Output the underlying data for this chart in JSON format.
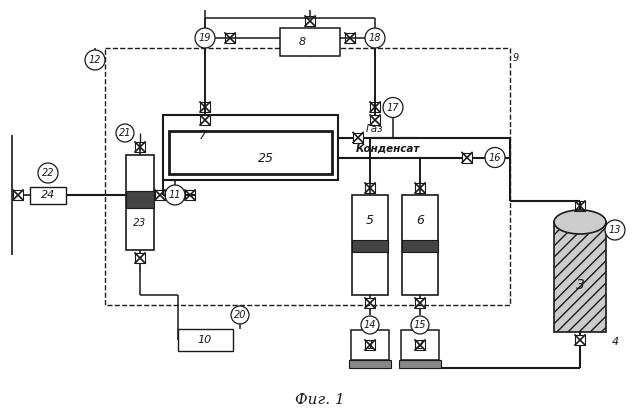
{
  "title": "Фиг. 1",
  "bg_color": "#ffffff",
  "line_color": "#1a1a1a",
  "fig_size": [
    6.4,
    4.15
  ],
  "dpi": 100
}
